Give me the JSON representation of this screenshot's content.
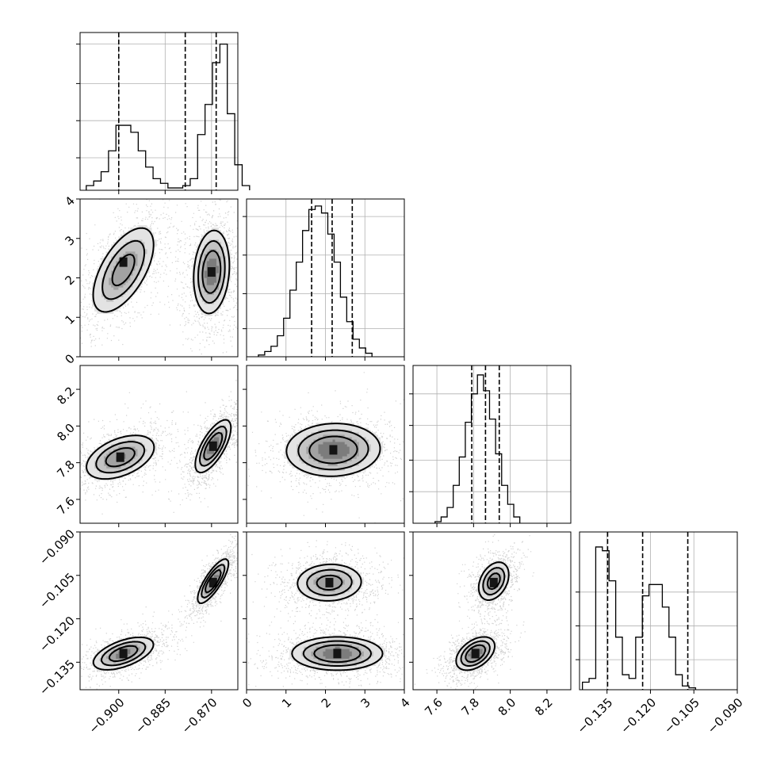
{
  "chart_data": {
    "type": "corner",
    "params": [
      {
        "key": "p0",
        "range": [
          -0.9125,
          -0.8615
        ],
        "ticks": [
          -0.9,
          -0.885,
          -0.87
        ],
        "tick_labels": [
          "−0.900",
          "−0.885",
          "−0.870"
        ],
        "quantiles": [
          -0.9,
          -0.8785,
          -0.8685
        ],
        "hist": {
          "start": -0.9105,
          "step": 0.0024,
          "counts": [
            2,
            4,
            8,
            17,
            28,
            28,
            25,
            17,
            10,
            5,
            3,
            1,
            1,
            2,
            5,
            24,
            37,
            55,
            63,
            33,
            11,
            2
          ]
        },
        "hist_ymax": 68,
        "hist_grid": [
          14,
          30,
          46,
          63
        ]
      },
      {
        "key": "p1",
        "range": [
          0.0,
          4.0
        ],
        "ticks": [
          0,
          1,
          2,
          3,
          4
        ],
        "tick_labels": [
          "0",
          "1",
          "2",
          "3",
          "4"
        ],
        "quantiles": [
          1.65,
          2.17,
          2.68
        ],
        "hist": {
          "start": 0.3,
          "step": 0.16,
          "counts": [
            0.5,
            1.5,
            3,
            6,
            11,
            19,
            27,
            36,
            42,
            43,
            41,
            35,
            27,
            17,
            10,
            5,
            2.5,
            1
          ]
        },
        "hist_ymax": 45,
        "hist_grid": [
          8,
          18,
          29,
          40
        ]
      },
      {
        "key": "p2",
        "range": [
          7.47,
          8.33
        ],
        "ticks": [
          7.6,
          7.8,
          8.0,
          8.2
        ],
        "tick_labels": [
          "7.6",
          "7.8",
          "8.0",
          "8.2"
        ],
        "quantiles": [
          7.79,
          7.865,
          7.94
        ],
        "hist": {
          "start": 7.59,
          "step": 0.033,
          "counts": [
            0.5,
            2,
            5,
            12,
            21,
            32,
            41,
            47,
            42,
            33,
            22,
            12,
            6,
            2
          ]
        },
        "hist_ymax": 50,
        "hist_grid": [
          10,
          20,
          31,
          41
        ]
      },
      {
        "key": "p3",
        "range": [
          -0.1445,
          -0.09
        ],
        "ticks": [
          -0.135,
          -0.12,
          -0.105,
          -0.09
        ],
        "tick_labels": [
          "−0.135",
          "−0.120",
          "−0.105",
          "−0.090"
        ],
        "quantiles": [
          -0.1348,
          -0.1227,
          -0.1071
        ],
        "hist": {
          "start": -0.1435,
          "step": 0.0023,
          "counts": [
            2,
            3,
            38,
            37,
            29,
            14,
            4,
            3,
            14,
            25,
            28,
            28,
            22,
            14,
            4,
            1,
            0.5
          ]
        },
        "hist_ymax": 42,
        "hist_grid": [
          8,
          17,
          26
        ]
      }
    ],
    "pairs": [
      {
        "row": 1,
        "col": 0,
        "blobs": [
          {
            "cx": -0.8985,
            "cy": 2.2,
            "sx": 0.0055,
            "sy": 0.6,
            "rho": 0.6,
            "w": 1,
            "peak": 2.4
          },
          {
            "cx": -0.87,
            "cy": 2.15,
            "sx": 0.003,
            "sy": 0.55,
            "rho": 0.15,
            "w": 1.3,
            "peak": 2.15
          }
        ]
      },
      {
        "row": 2,
        "col": 0,
        "blobs": [
          {
            "cx": -0.8995,
            "cy": 7.83,
            "sx": 0.006,
            "sy": 0.065,
            "rho": 0.45,
            "w": 1,
            "peak": 7.83
          },
          {
            "cx": -0.8695,
            "cy": 7.89,
            "sx": 0.003,
            "sy": 0.075,
            "rho": 0.7,
            "w": 1.2,
            "peak": 7.89
          }
        ]
      },
      {
        "row": 2,
        "col": 1,
        "blobs": [
          {
            "cx": 2.2,
            "cy": 7.87,
            "sx": 0.62,
            "sy": 0.075,
            "rho": 0.05,
            "w": 1,
            "peak": 7.87
          }
        ]
      },
      {
        "row": 3,
        "col": 0,
        "blobs": [
          {
            "cx": -0.8985,
            "cy": -0.132,
            "sx": 0.0052,
            "sy": 0.003,
            "rho": 0.55,
            "w": 1,
            "peak": -0.132
          },
          {
            "cx": -0.8695,
            "cy": -0.107,
            "sx": 0.0026,
            "sy": 0.004,
            "rho": 0.8,
            "w": 1.1,
            "peak": -0.1075
          }
        ]
      },
      {
        "row": 3,
        "col": 1,
        "blobs": [
          {
            "cx": 2.1,
            "cy": -0.1075,
            "sx": 0.45,
            "sy": 0.0035,
            "rho": 0.05,
            "w": 1,
            "peak": -0.1075
          },
          {
            "cx": 2.3,
            "cy": -0.132,
            "sx": 0.6,
            "sy": 0.003,
            "rho": 0.0,
            "w": 1.25,
            "peak": -0.132
          }
        ]
      },
      {
        "row": 3,
        "col": 2,
        "blobs": [
          {
            "cx": 7.91,
            "cy": -0.107,
            "sx": 0.045,
            "sy": 0.0036,
            "rho": 0.35,
            "w": 1,
            "peak": -0.1075
          },
          {
            "cx": 7.81,
            "cy": -0.132,
            "sx": 0.055,
            "sy": 0.003,
            "rho": 0.45,
            "w": 1.2,
            "peak": -0.132
          }
        ]
      }
    ]
  }
}
